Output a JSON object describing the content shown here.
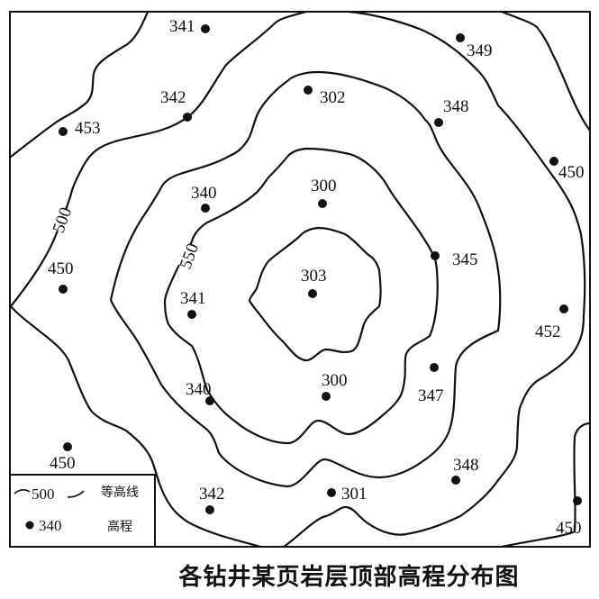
{
  "title": "各钻井某页岩层顶部高程分布图",
  "contour_labels": {
    "c500": "500",
    "c550": "550"
  },
  "legend": {
    "contour_sample": "500",
    "contour_label": "等高线",
    "point_sample": "340",
    "point_label": "高程"
  },
  "wells": [
    "341",
    "349",
    "342",
    "453",
    "302",
    "348",
    "450",
    "340",
    "300",
    "345",
    "450",
    "303",
    "341",
    "452",
    "347",
    "340",
    "300",
    "450",
    "348",
    "342",
    "301",
    "450"
  ]
}
